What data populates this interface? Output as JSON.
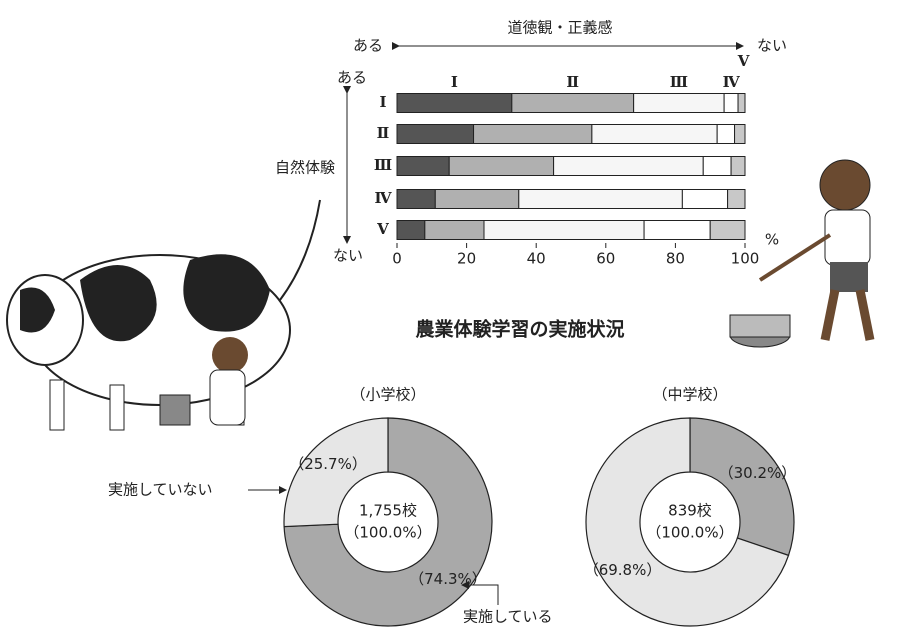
{
  "heading": "農業体験学習の実施状況",
  "chart_data": [
    {
      "type": "stacked-bar",
      "orientation": "horizontal",
      "title": "道徳観・正義感",
      "x_start_label": "ある",
      "x_end_label": "ない",
      "y_label": "自然体験",
      "y_start_label": "ある",
      "y_end_label": "ない",
      "x_unit": "%",
      "categories": [
        "Ⅰ",
        "Ⅱ",
        "Ⅲ",
        "Ⅳ",
        "Ⅴ"
      ],
      "series": [
        {
          "name": "Ⅰ",
          "color": "#555555",
          "values": [
            33,
            22,
            15,
            11,
            8
          ]
        },
        {
          "name": "Ⅱ",
          "color": "#b0b0b0",
          "values": [
            35,
            34,
            30,
            24,
            17
          ]
        },
        {
          "name": "Ⅲ",
          "color": "#f6f6f6",
          "values": [
            26,
            36,
            43,
            47,
            46
          ]
        },
        {
          "name": "Ⅳ",
          "color": "#ffffff",
          "values": [
            4,
            5,
            8,
            13,
            19
          ]
        },
        {
          "name": "Ⅴ",
          "color": "#c8c8c8",
          "values": [
            2,
            3,
            4,
            5,
            10
          ]
        }
      ],
      "xlim": [
        0,
        100
      ],
      "xticks": [
        0,
        20,
        40,
        60,
        80,
        100
      ]
    },
    {
      "type": "donut",
      "title": "（小学校）",
      "center_labels": [
        "1,755校",
        "（100.0%）"
      ],
      "categories": [
        "実施している",
        "実施していない"
      ],
      "values": [
        74.3,
        25.7
      ],
      "value_labels": [
        "（74.3%）",
        "（25.7%）"
      ],
      "colors": [
        "#a9a9a9",
        "#e6e6e6"
      ]
    },
    {
      "type": "donut",
      "title": "（中学校）",
      "center_labels": [
        "839校",
        "（100.0%）"
      ],
      "values": [
        30.2,
        69.8
      ],
      "value_labels": [
        "（30.2%）",
        "（69.8%）"
      ],
      "colors": [
        "#a9a9a9",
        "#e6e6e6"
      ]
    }
  ]
}
